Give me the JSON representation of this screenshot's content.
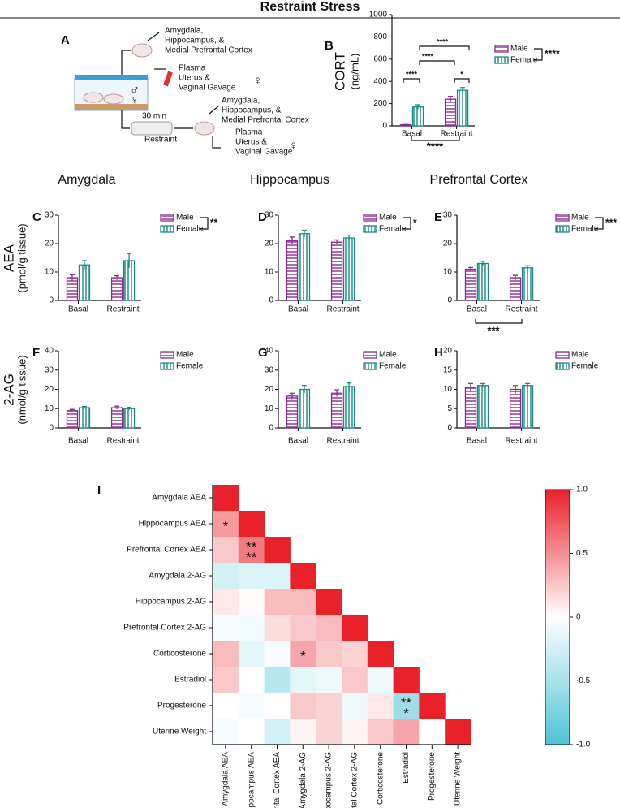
{
  "title": "Restraint Stress",
  "diagram": {
    "label": "A",
    "top_tissues": [
      "Amygdala,",
      "Hippocampus, &",
      "Medial Prefrontal Cortex"
    ],
    "top_fluids": [
      "Plasma",
      "Uterus &",
      "Vaginal Gavage"
    ],
    "duration": "30 min",
    "condition": "Restraint",
    "bottom_tissues": [
      "Amygdala,",
      "Hippocampus, &",
      "Medial Prefrontal Cortex"
    ],
    "bottom_fluids": [
      "Plasma",
      "Uterus &",
      "Vaginal Gavage"
    ],
    "female_symbol": "♀",
    "male_symbol": "♂"
  },
  "column_headers": [
    "Amygdala",
    "Hippocampus",
    "Prefrontal Cortex"
  ],
  "chart_data": [
    {
      "type": "bar",
      "panel": "B",
      "ylabel": [
        "CORT",
        "(ng/mL)"
      ],
      "categories": [
        "Basal",
        "Restraint"
      ],
      "series": [
        {
          "name": "Male",
          "color": "#8e2c8e",
          "values": [
            10,
            240
          ],
          "errors": [
            3,
            25
          ]
        },
        {
          "name": "Female",
          "color": "#1b8a83",
          "values": [
            170,
            320
          ],
          "errors": [
            20,
            25
          ]
        }
      ],
      "ylim": [
        0,
        1000
      ],
      "yticks": [
        0,
        200,
        400,
        600,
        800,
        1000
      ],
      "legend_annotation": "****",
      "annotations": [
        "****",
        "****",
        "****",
        "*",
        "****"
      ]
    },
    {
      "type": "bar",
      "panel": "C",
      "ylabel": [
        "AEA",
        "(pmol/g tissue)"
      ],
      "categories": [
        "Basal",
        "Restraint"
      ],
      "series": [
        {
          "name": "Male",
          "color": "#8e2c8e",
          "values": [
            8,
            8
          ],
          "errors": [
            1,
            0.7
          ]
        },
        {
          "name": "Female",
          "color": "#1b8a83",
          "values": [
            12.5,
            14
          ],
          "errors": [
            1.5,
            2.5
          ]
        }
      ],
      "ylim": [
        0,
        30
      ],
      "yticks": [
        0,
        10,
        20,
        30
      ],
      "legend_annotation": "**",
      "annotations": []
    },
    {
      "type": "bar",
      "panel": "D",
      "categories": [
        "Basal",
        "Restraint"
      ],
      "series": [
        {
          "name": "Male",
          "color": "#8e2c8e",
          "values": [
            21,
            20.5
          ],
          "errors": [
            1.3,
            0.8
          ]
        },
        {
          "name": "Female",
          "color": "#1b8a83",
          "values": [
            23.5,
            22
          ],
          "errors": [
            1.2,
            1
          ]
        }
      ],
      "ylim": [
        0,
        30
      ],
      "yticks": [
        0,
        10,
        20,
        30
      ],
      "legend_annotation": "*",
      "annotations": []
    },
    {
      "type": "bar",
      "panel": "E",
      "categories": [
        "Basal",
        "Restraint"
      ],
      "series": [
        {
          "name": "Male",
          "color": "#8e2c8e",
          "values": [
            11,
            8
          ],
          "errors": [
            0.6,
            0.8
          ]
        },
        {
          "name": "Female",
          "color": "#1b8a83",
          "values": [
            13,
            11.5
          ],
          "errors": [
            0.8,
            0.7
          ]
        }
      ],
      "ylim": [
        0,
        30
      ],
      "yticks": [
        0,
        10,
        20,
        30
      ],
      "legend_annotation": "***",
      "annotations": [
        "***"
      ]
    },
    {
      "type": "bar",
      "panel": "F",
      "ylabel": [
        "2-AG",
        "(nmol/g tissue)"
      ],
      "categories": [
        "Basal",
        "Restraint"
      ],
      "series": [
        {
          "name": "Male",
          "color": "#8e2c8e",
          "values": [
            9,
            10.5
          ],
          "errors": [
            0.6,
            0.8
          ]
        },
        {
          "name": "Female",
          "color": "#1b8a83",
          "values": [
            10.5,
            10
          ],
          "errors": [
            0.6,
            0.7
          ]
        }
      ],
      "ylim": [
        0,
        40
      ],
      "yticks": [
        0,
        10,
        20,
        30,
        40
      ],
      "annotations": []
    },
    {
      "type": "bar",
      "panel": "G",
      "categories": [
        "Basal",
        "Restraint"
      ],
      "series": [
        {
          "name": "Male",
          "color": "#8e2c8e",
          "values": [
            16.5,
            18
          ],
          "errors": [
            1.5,
            1.8
          ]
        },
        {
          "name": "Female",
          "color": "#1b8a83",
          "values": [
            20,
            21.5
          ],
          "errors": [
            2,
            1.8
          ]
        }
      ],
      "ylim": [
        0,
        40
      ],
      "yticks": [
        0,
        10,
        20,
        30,
        40
      ],
      "annotations": []
    },
    {
      "type": "bar",
      "panel": "H",
      "categories": [
        "Basal",
        "Restraint"
      ],
      "series": [
        {
          "name": "Male",
          "color": "#8e2c8e",
          "values": [
            10.5,
            10
          ],
          "errors": [
            1,
            1
          ]
        },
        {
          "name": "Female",
          "color": "#1b8a83",
          "values": [
            11,
            11
          ],
          "errors": [
            0.5,
            0.5
          ]
        }
      ],
      "ylim": [
        0,
        20
      ],
      "yticks": [
        0,
        5,
        10,
        15,
        20
      ],
      "annotations": []
    },
    {
      "type": "heatmap",
      "panel": "I",
      "labels": [
        "Amygdala AEA",
        "Hippocampus AEA",
        "Prefrontal Cortex AEA",
        "Amygdala 2-AG",
        "Hippocampus 2-AG",
        "Prefrontal Cortex 2-AG",
        "Corticosterone",
        "Estradiol",
        "Progesterone",
        "Uterine Weight"
      ],
      "values": [
        [
          1
        ],
        [
          0.45,
          1
        ],
        [
          0.25,
          0.6,
          1
        ],
        [
          -0.25,
          -0.2,
          -0.2,
          1
        ],
        [
          0.1,
          0.02,
          0.3,
          0.3,
          1
        ],
        [
          -0.05,
          -0.08,
          0.15,
          0.25,
          0.3,
          1
        ],
        [
          0.3,
          -0.15,
          -0.05,
          0.4,
          0.25,
          0.2,
          1
        ],
        [
          0.25,
          0,
          -0.4,
          -0.15,
          -0.1,
          0.25,
          -0.1,
          1
        ],
        [
          0,
          -0.05,
          0,
          0.25,
          0.2,
          -0.1,
          0.1,
          -0.55,
          1
        ],
        [
          -0.05,
          0,
          -0.25,
          0.05,
          0.2,
          0.05,
          0.25,
          0.4,
          0,
          1
        ]
      ],
      "colormap": [
        "#4fc3d6",
        "#ffffff",
        "#e8212a"
      ],
      "clim": [
        -1,
        1
      ],
      "cticks": [
        {
          "value": 1,
          "label": "1.0"
        },
        0.5,
        0,
        -0.5,
        {
          "value": -1,
          "label": "-1.0"
        }
      ],
      "annotations": [
        {
          "row": 1,
          "col": 0,
          "text": [
            "*"
          ]
        },
        {
          "row": 2,
          "col": 1,
          "text": [
            "**",
            "**"
          ]
        },
        {
          "row": 6,
          "col": 3,
          "text": [
            "*"
          ]
        },
        {
          "row": 8,
          "col": 7,
          "text": [
            "**",
            "*"
          ]
        }
      ]
    }
  ]
}
